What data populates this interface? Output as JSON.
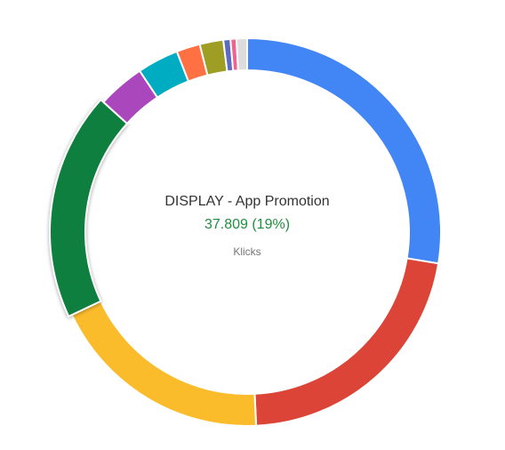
{
  "chart_data": {
    "type": "pie",
    "donut": true,
    "metric": "Klicks",
    "segments": [
      {
        "percent": 28.0,
        "color": "#4285f4"
      },
      {
        "percent": 22.0,
        "color": "#db4437"
      },
      {
        "percent": 19.0,
        "color": "#fbbc2c"
      },
      {
        "percent": 19.0,
        "color": "#0f7f3f",
        "label": "DISPLAY - App Promotion",
        "value_label": "37.809 (19%)"
      },
      {
        "percent": 4.0,
        "color": "#ab47bc"
      },
      {
        "percent": 3.5,
        "color": "#00acc1"
      },
      {
        "percent": 2.0,
        "color": "#ff7043"
      },
      {
        "percent": 2.0,
        "color": "#9e9d24"
      },
      {
        "percent": 0.6,
        "color": "#5c6bc0"
      },
      {
        "percent": 0.5,
        "color": "#f06292"
      },
      {
        "percent": 0.9,
        "color": "#dcdcdc"
      }
    ],
    "highlighted_index": 3
  },
  "center": {
    "title": "DISPLAY - App Promotion",
    "value": "37.809 (19%)",
    "metric": "Klicks"
  }
}
